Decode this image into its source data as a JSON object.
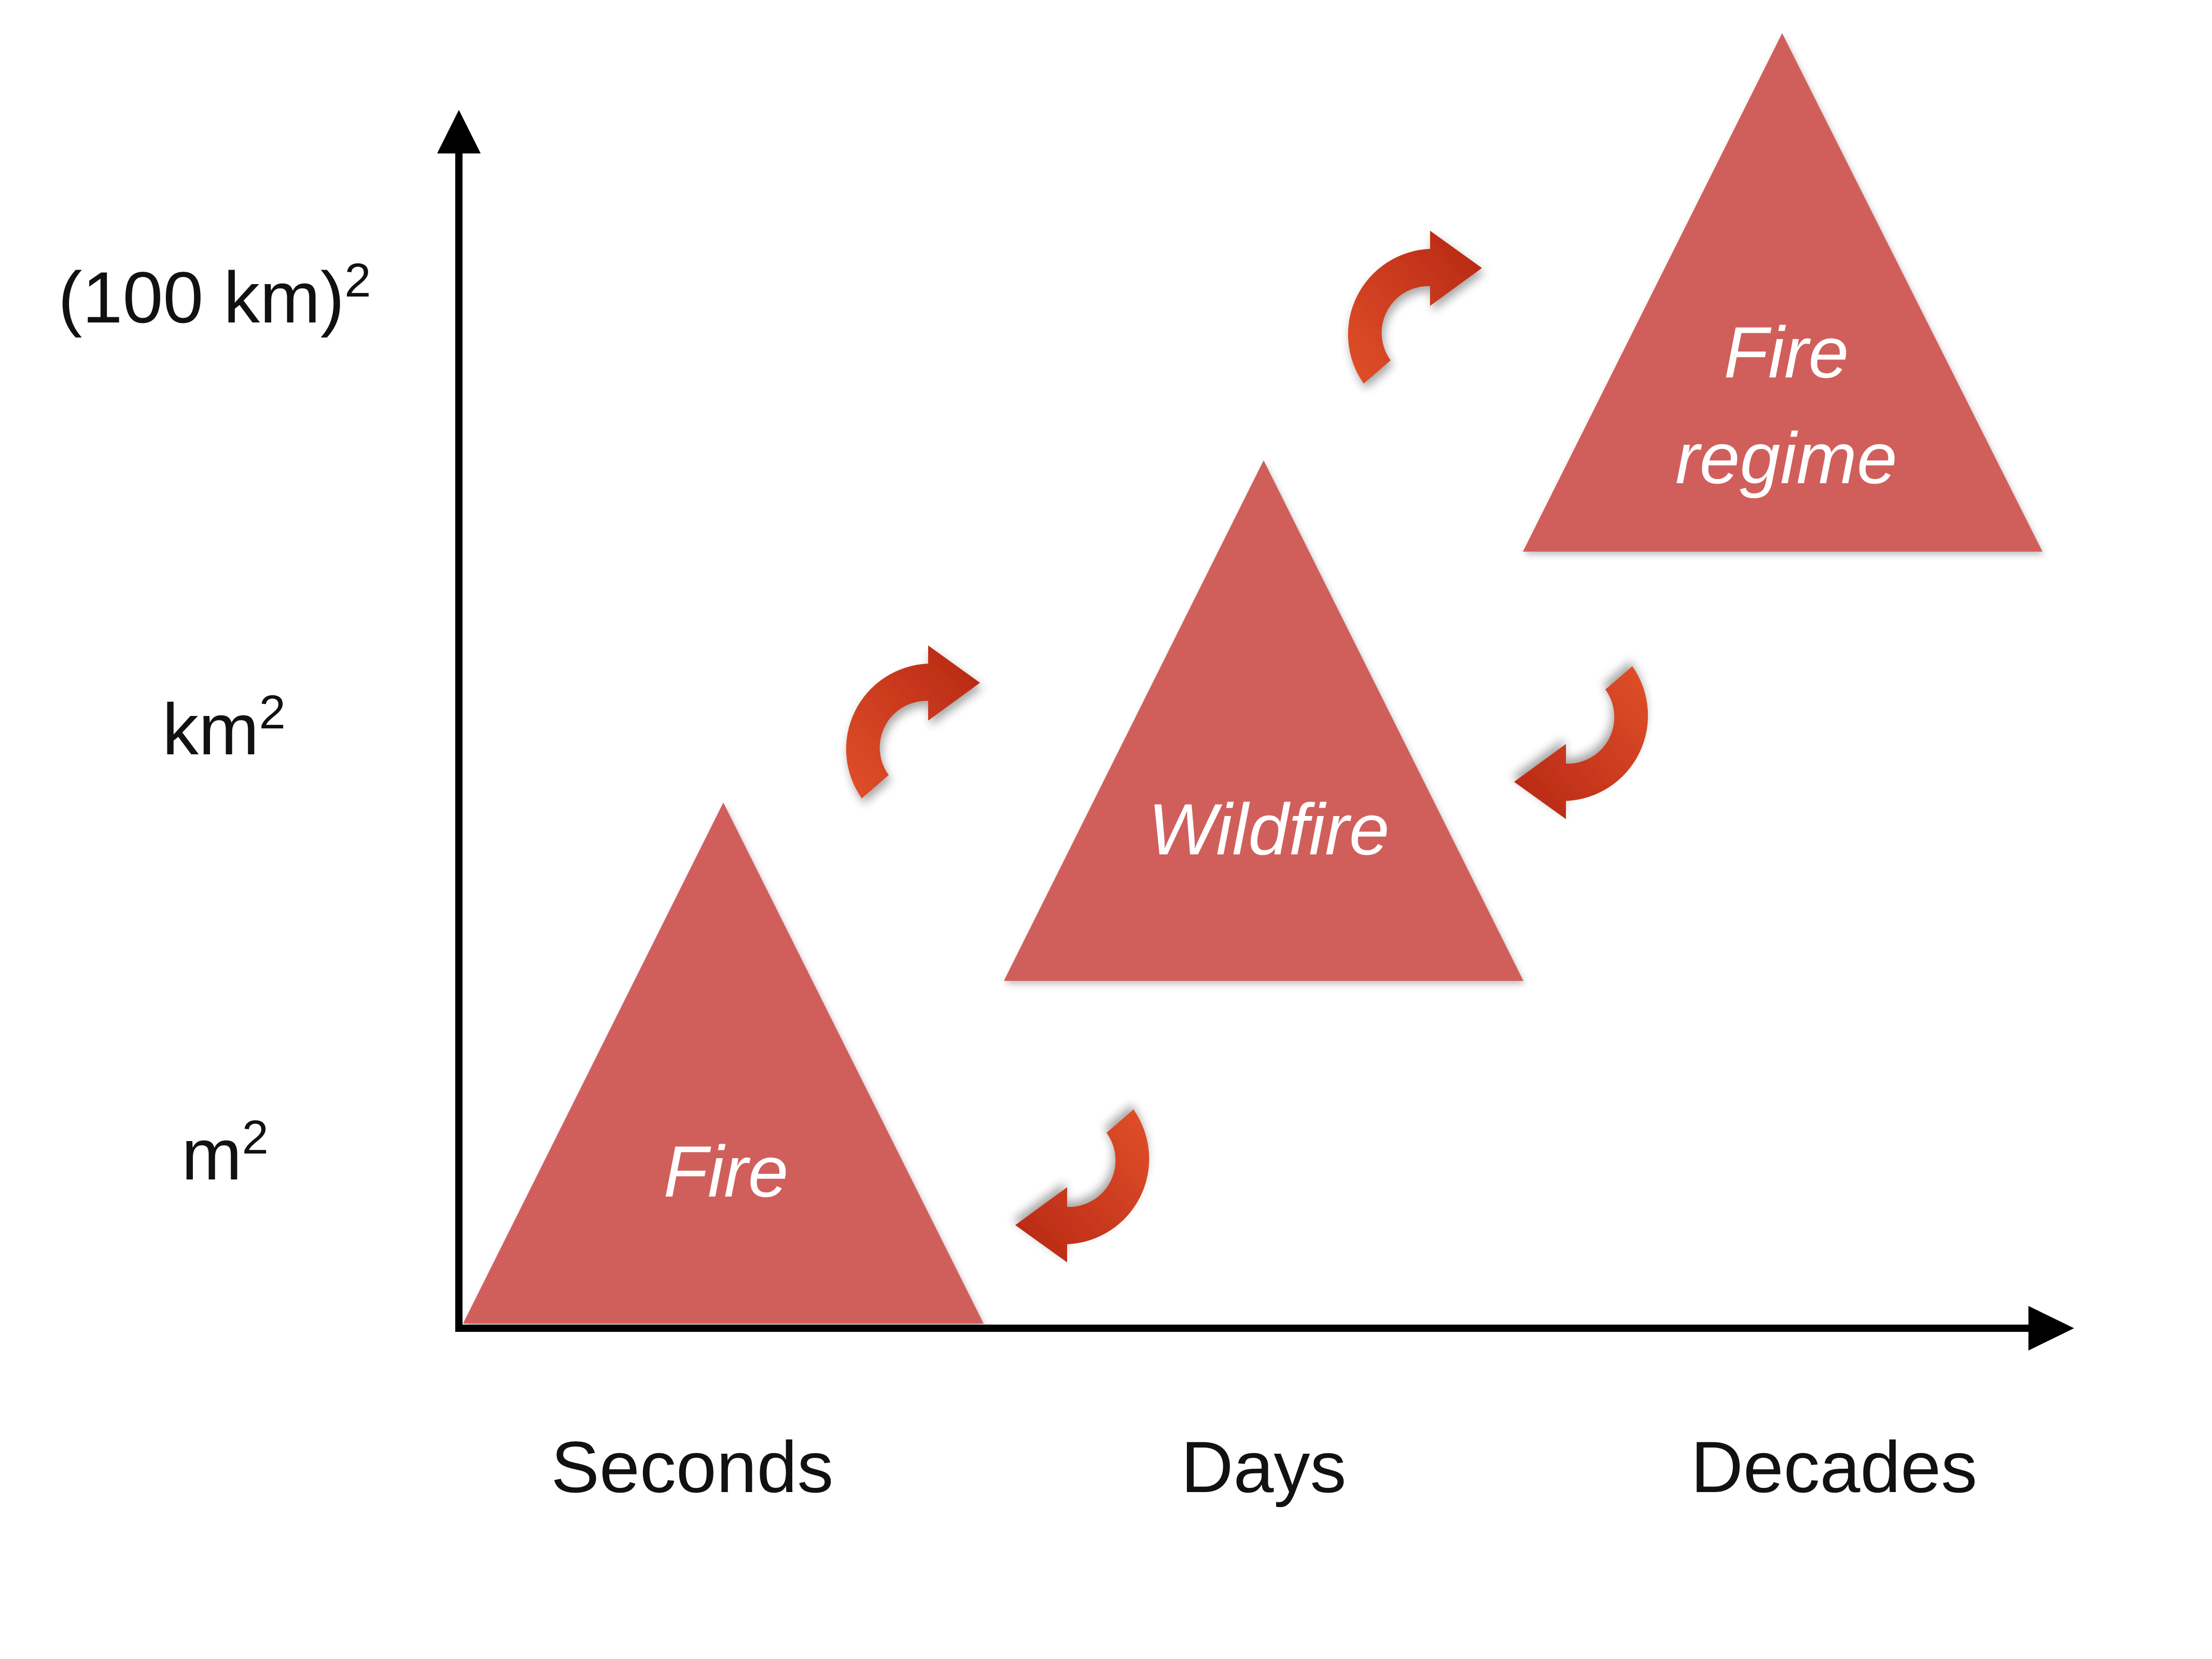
{
  "y_axis": {
    "labels": [
      {
        "base": "(100 km)",
        "exp": "2"
      },
      {
        "base": "km",
        "exp": "2"
      },
      {
        "base": "m",
        "exp": "2"
      }
    ]
  },
  "x_axis": {
    "labels": [
      "Seconds",
      "Days",
      "Decades"
    ]
  },
  "nodes": [
    {
      "lines": [
        "Fire"
      ]
    },
    {
      "lines": [
        "Wildfire"
      ]
    },
    {
      "lines": [
        "Fire",
        "regime"
      ]
    }
  ],
  "colors": {
    "triangle_fill": "#d05f5b",
    "arrow_light": "#e0502a",
    "arrow_dark": "#b62613",
    "axis": "#000000",
    "text": "#111111",
    "node_text": "#ffffff"
  },
  "icons": {
    "upward_arrow": "curved-arrow-up-right-icon",
    "downward_arrow": "curved-arrow-down-left-icon"
  }
}
